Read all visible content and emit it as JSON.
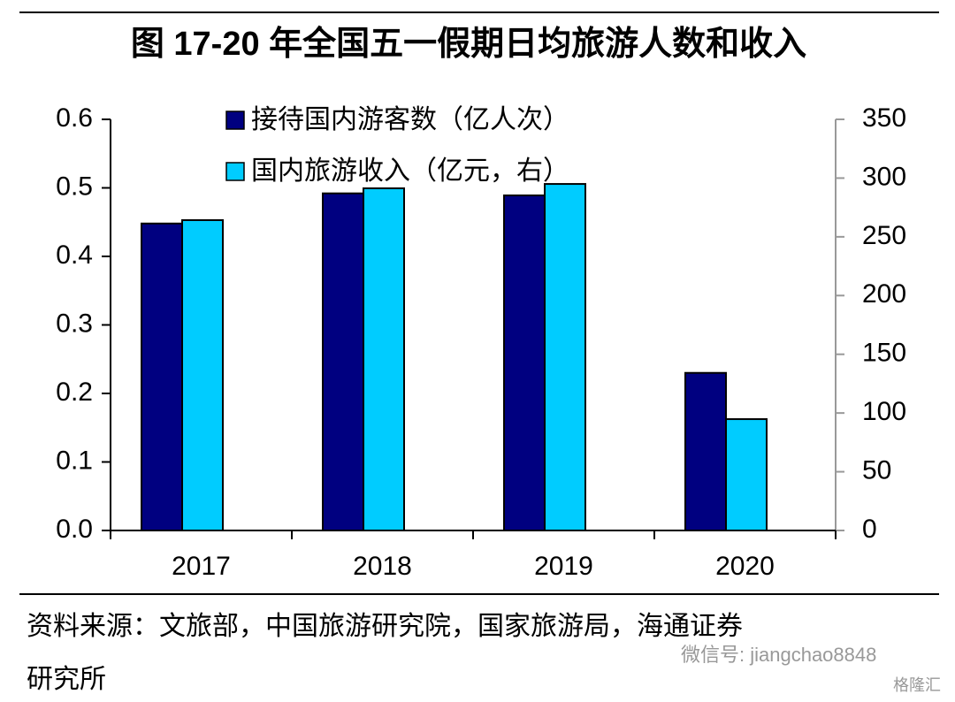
{
  "chart_data": {
    "type": "bar",
    "title": "图    17-20 年全国五一假期日均旅游人数和收入",
    "categories": [
      "2017",
      "2018",
      "2019",
      "2020"
    ],
    "series": [
      {
        "name": "接待国内游客数（亿人次）",
        "color": "#000080",
        "values": [
          0.448,
          0.492,
          0.489,
          0.23
        ]
      },
      {
        "name": "国内旅游收入（亿元，右）",
        "color": "#00ccff",
        "values": [
          264.2,
          291.3,
          295.0,
          94.8
        ],
        "axis": "y2"
      }
    ],
    "ylim": [
      0,
      0.6
    ],
    "yticks": [
      {
        "value": 0,
        "label": "0.0"
      },
      0.1,
      0.2,
      0.3,
      0.4,
      0.5,
      0.6
    ],
    "y2lim": [
      0,
      350
    ],
    "y2ticks": [
      0,
      50,
      100,
      150,
      200,
      250,
      300,
      350
    ],
    "legend": "top",
    "source": "资料来源：文旅部，中国旅游研究院，国家旅游局，海通证券",
    "source_line2": "研究所",
    "watermark": "微信号: jiangchao8848",
    "watermark2": "格隆汇"
  }
}
